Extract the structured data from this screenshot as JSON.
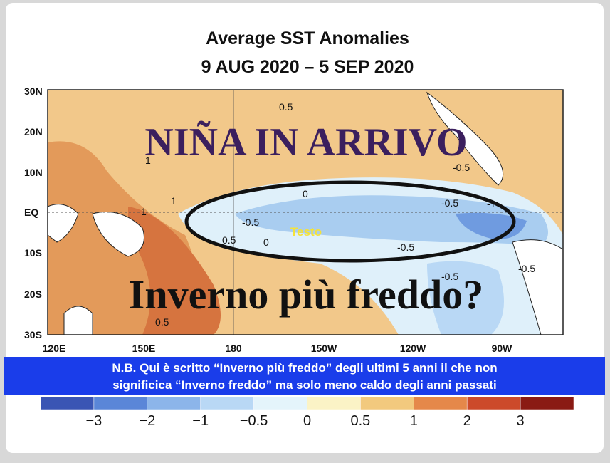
{
  "title": [
    "Average SST Anomalies",
    "9 AUG 2020 – 5 SEP 2020"
  ],
  "map": {
    "lat_labels": [
      "30N",
      "20N",
      "10N",
      "EQ",
      "10S",
      "20S",
      "30S"
    ],
    "lon_labels": [
      "120E",
      "150E",
      "180",
      "150W",
      "120W",
      "90W"
    ],
    "contour_labels": [
      "0.5",
      "1",
      "1",
      "1",
      "0",
      "-0.5",
      "-0.5",
      "-1",
      "-0.5",
      "0.5",
      "0",
      "-0.5",
      "-0.5",
      "-0.5",
      "0.5"
    ]
  },
  "overlay": {
    "headline": "NIÑA IN ARRIVO",
    "placeholder": "Testo",
    "question": "Inverno più freddo?"
  },
  "note": [
    "N.B. Qui è  scritto “Inverno più freddo” degli ultimi 5 anni il che non",
    "significica “Inverno freddo” ma solo meno caldo degli anni passati"
  ],
  "colorbar": {
    "labels": [
      "−3",
      "−2",
      "−1",
      "−0.5",
      "0",
      "0.5",
      "1",
      "2",
      "3"
    ],
    "colors": [
      "#3a55b4",
      "#5a86d8",
      "#8cb5ea",
      "#b9d8f5",
      "#e4f4fb",
      "#fbf3c6",
      "#f2c97e",
      "#e5884a",
      "#cc4a2a",
      "#8a1a14"
    ]
  }
}
